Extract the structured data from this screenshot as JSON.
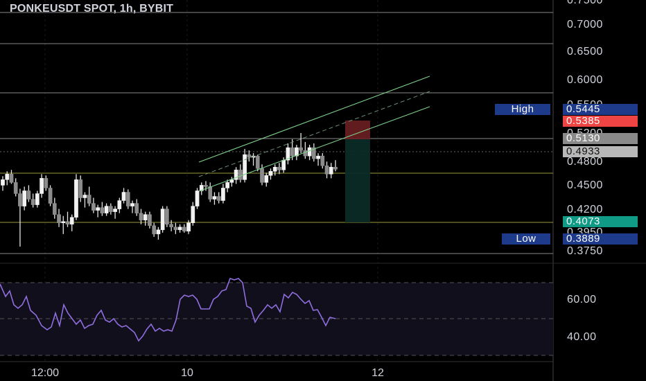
{
  "header": {
    "title": "PONKEUSDT SPOT, 1h, BYBIT"
  },
  "colors": {
    "background": "#000000",
    "candle": "#e6e6e6",
    "channel": "#7fd18b",
    "rsi_line": "#8f6fe0",
    "tag_high": "#1e3a8a",
    "tag_red": "#ef4444",
    "tag_gray": "#8a8a8a",
    "tag_teal": "#0f9b86"
  },
  "price_axis": {
    "labels": [
      "0.7500",
      "0.7000",
      "0.6500",
      "0.6000",
      "0.5500",
      "0.5200",
      "0.4800",
      "0.4500",
      "0.4200",
      "0.3950",
      "0.3750"
    ]
  },
  "tags": {
    "high_label": "High",
    "high_value": "0.5445",
    "red_value": "0.5385",
    "gray_value": "0.5130",
    "current_value": "0.4933",
    "teal_value": "0.4073",
    "low_label": "Low",
    "low_value": "0.3889"
  },
  "rsi_axis": {
    "labels": [
      "60.00",
      "40.00"
    ]
  },
  "time_axis": {
    "labels": [
      "12:00",
      "10",
      "12"
    ]
  },
  "chart_data": {
    "type": "candlestick",
    "title": "PONKEUSDT SPOT, 1h, BYBIT",
    "ylim": [
      0.36,
      0.75
    ],
    "horizontal_levels": [
      0.725,
      0.665,
      0.5715,
      0.513,
      0.4933,
      0.467,
      0.4073,
      0.375
    ],
    "candles": [
      [
        0.47,
        0.483,
        0.462,
        0.478
      ],
      [
        0.478,
        0.49,
        0.47,
        0.486
      ],
      [
        0.486,
        0.492,
        0.472,
        0.474
      ],
      [
        0.474,
        0.48,
        0.454,
        0.458
      ],
      [
        0.458,
        0.465,
        0.382,
        0.44
      ],
      [
        0.44,
        0.468,
        0.434,
        0.462
      ],
      [
        0.462,
        0.47,
        0.446,
        0.45
      ],
      [
        0.45,
        0.458,
        0.438,
        0.442
      ],
      [
        0.442,
        0.462,
        0.438,
        0.458
      ],
      [
        0.458,
        0.486,
        0.452,
        0.48
      ],
      [
        0.48,
        0.484,
        0.462,
        0.466
      ],
      [
        0.466,
        0.47,
        0.44,
        0.444
      ],
      [
        0.444,
        0.452,
        0.422,
        0.428
      ],
      [
        0.428,
        0.436,
        0.41,
        0.416
      ],
      [
        0.416,
        0.426,
        0.4,
        0.418
      ],
      [
        0.418,
        0.432,
        0.41,
        0.414
      ],
      [
        0.414,
        0.428,
        0.404,
        0.424
      ],
      [
        0.424,
        0.486,
        0.42,
        0.478
      ],
      [
        0.478,
        0.484,
        0.446,
        0.452
      ],
      [
        0.452,
        0.46,
        0.438,
        0.456
      ],
      [
        0.456,
        0.468,
        0.44,
        0.444
      ],
      [
        0.444,
        0.452,
        0.43,
        0.434
      ],
      [
        0.434,
        0.442,
        0.424,
        0.438
      ],
      [
        0.438,
        0.446,
        0.426,
        0.43
      ],
      [
        0.43,
        0.444,
        0.426,
        0.44
      ],
      [
        0.44,
        0.444,
        0.428,
        0.432
      ],
      [
        0.432,
        0.44,
        0.422,
        0.436
      ],
      [
        0.436,
        0.452,
        0.43,
        0.448
      ],
      [
        0.448,
        0.466,
        0.444,
        0.46
      ],
      [
        0.46,
        0.464,
        0.436,
        0.44
      ],
      [
        0.44,
        0.448,
        0.43,
        0.444
      ],
      [
        0.444,
        0.45,
        0.426,
        0.43
      ],
      [
        0.43,
        0.436,
        0.414,
        0.42
      ],
      [
        0.42,
        0.432,
        0.412,
        0.428
      ],
      [
        0.428,
        0.432,
        0.408,
        0.412
      ],
      [
        0.412,
        0.416,
        0.396,
        0.4
      ],
      [
        0.4,
        0.41,
        0.392,
        0.406
      ],
      [
        0.406,
        0.44,
        0.402,
        0.436
      ],
      [
        0.436,
        0.44,
        0.41,
        0.414
      ],
      [
        0.414,
        0.42,
        0.404,
        0.41
      ],
      [
        0.41,
        0.416,
        0.4,
        0.406
      ],
      [
        0.406,
        0.414,
        0.402,
        0.41
      ],
      [
        0.41,
        0.414,
        0.402,
        0.404
      ],
      [
        0.404,
        0.42,
        0.4,
        0.416
      ],
      [
        0.416,
        0.446,
        0.412,
        0.44
      ],
      [
        0.44,
        0.466,
        0.436,
        0.462
      ],
      [
        0.462,
        0.474,
        0.456,
        0.47
      ],
      [
        0.47,
        0.476,
        0.462,
        0.468
      ],
      [
        0.468,
        0.474,
        0.446,
        0.45
      ],
      [
        0.45,
        0.46,
        0.442,
        0.454
      ],
      [
        0.454,
        0.46,
        0.444,
        0.448
      ],
      [
        0.448,
        0.472,
        0.444,
        0.466
      ],
      [
        0.466,
        0.478,
        0.46,
        0.474
      ],
      [
        0.474,
        0.482,
        0.468,
        0.478
      ],
      [
        0.478,
        0.496,
        0.472,
        0.492
      ],
      [
        0.492,
        0.5,
        0.474,
        0.478
      ],
      [
        0.478,
        0.522,
        0.474,
        0.514
      ],
      [
        0.514,
        0.52,
        0.504,
        0.51
      ],
      [
        0.51,
        0.516,
        0.498,
        0.512
      ],
      [
        0.512,
        0.514,
        0.49,
        0.494
      ],
      [
        0.494,
        0.5,
        0.47,
        0.474
      ],
      [
        0.474,
        0.488,
        0.468,
        0.484
      ],
      [
        0.484,
        0.494,
        0.478,
        0.49
      ],
      [
        0.49,
        0.5,
        0.484,
        0.496
      ],
      [
        0.496,
        0.502,
        0.486,
        0.492
      ],
      [
        0.492,
        0.51,
        0.488,
        0.506
      ],
      [
        0.506,
        0.53,
        0.5,
        0.524
      ],
      [
        0.524,
        0.536,
        0.506,
        0.512
      ],
      [
        0.512,
        0.528,
        0.506,
        0.524
      ],
      [
        0.524,
        0.545,
        0.516,
        0.52
      ],
      [
        0.52,
        0.532,
        0.508,
        0.512
      ],
      [
        0.512,
        0.528,
        0.506,
        0.524
      ],
      [
        0.524,
        0.53,
        0.504,
        0.508
      ],
      [
        0.508,
        0.516,
        0.498,
        0.512
      ],
      [
        0.512,
        0.516,
        0.494,
        0.498
      ],
      [
        0.498,
        0.504,
        0.48,
        0.486
      ],
      [
        0.486,
        0.502,
        0.48,
        0.496
      ],
      [
        0.496,
        0.506,
        0.49,
        0.493
      ]
    ]
  }
}
